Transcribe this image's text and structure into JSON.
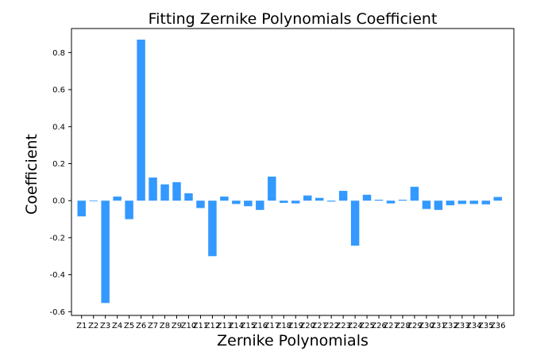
{
  "chart_data": {
    "type": "bar",
    "title": "Fitting Zernike Polynomials Coefficient",
    "xlabel": "Zernike Polynomials",
    "ylabel": "Coefficient",
    "ylim": [
      -0.62,
      0.93
    ],
    "yticks": [
      "-0.6",
      "-0.4",
      "-0.2",
      "0.0",
      "0.2",
      "0.4",
      "0.6",
      "0.8"
    ],
    "categories": [
      "Z1",
      "Z2",
      "Z3",
      "Z4",
      "Z5",
      "Z6",
      "Z7",
      "Z8",
      "Z9",
      "Z10",
      "Z11",
      "Z12",
      "Z13",
      "Z14",
      "Z15",
      "Z16",
      "Z17",
      "Z18",
      "Z19",
      "Z20",
      "Z21",
      "Z22",
      "Z23",
      "Z24",
      "Z25",
      "Z26",
      "Z27",
      "Z28",
      "Z29",
      "Z30",
      "Z31",
      "Z32",
      "Z33",
      "Z34",
      "Z35",
      "Z36"
    ],
    "values": [
      -0.085,
      -0.003,
      -0.553,
      0.022,
      -0.1,
      0.87,
      0.125,
      0.088,
      0.1,
      0.04,
      -0.04,
      -0.3,
      0.022,
      -0.018,
      -0.03,
      -0.05,
      0.13,
      -0.012,
      -0.015,
      0.028,
      0.015,
      -0.005,
      0.053,
      -0.243,
      0.032,
      0.005,
      -0.015,
      0.005,
      0.075,
      -0.045,
      -0.05,
      -0.025,
      -0.018,
      -0.018,
      -0.02,
      0.02
    ],
    "bar_color": "#3399ff",
    "grid": false,
    "legend": "none"
  }
}
